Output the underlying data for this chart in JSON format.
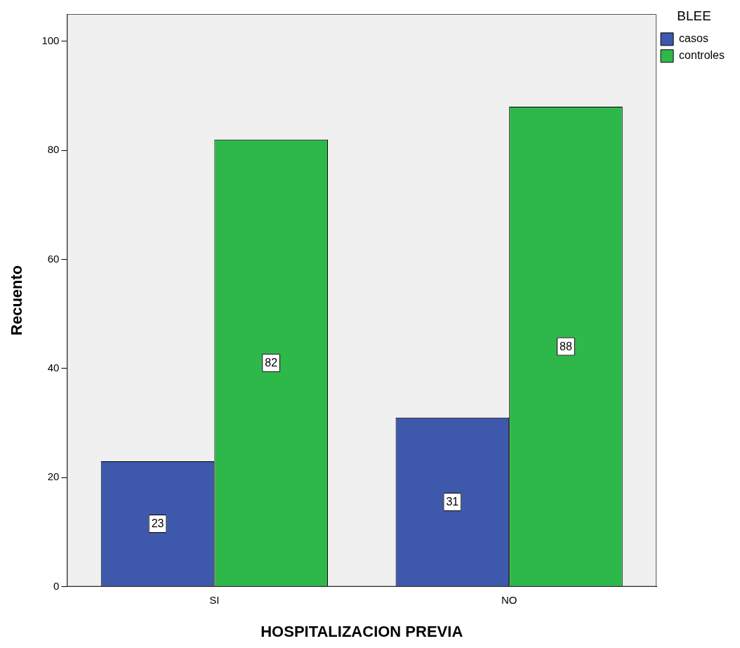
{
  "chart_data": {
    "type": "bar",
    "xlabel": "HOSPITALIZACION PREVIA",
    "ylabel": "Recuento",
    "legend_title": "BLEE",
    "categories": [
      "SI",
      "NO"
    ],
    "series": [
      {
        "name": "casos",
        "color": "#3e58ac",
        "values": [
          23,
          31
        ]
      },
      {
        "name": "controles",
        "color": "#2fb84a",
        "values": [
          82,
          88
        ]
      }
    ],
    "ylim": [
      0,
      105
    ],
    "yticks": [
      0,
      20,
      40,
      60,
      80,
      100
    ],
    "grid": false,
    "legend": "top right",
    "data_labels": true
  }
}
